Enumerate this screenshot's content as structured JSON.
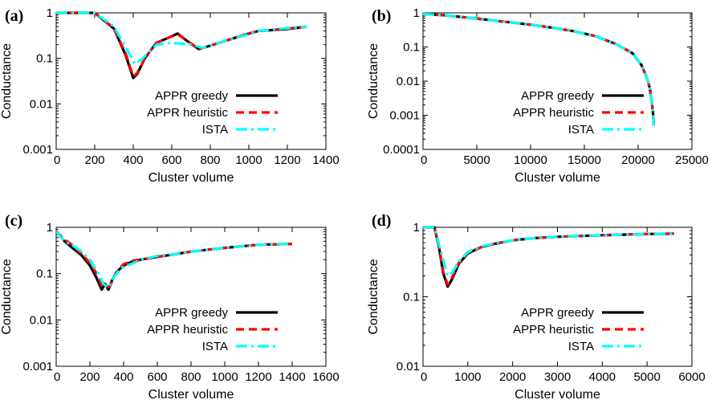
{
  "legend": {
    "placement": "inside-lower-right"
  },
  "colors": {
    "APPR greedy": "#000000",
    "APPR heuristic": "#ff0000",
    "ISTA": "#00ffff"
  },
  "chart_data": [
    {
      "panel": "(a)",
      "type": "line",
      "xlabel": "Cluster volume",
      "ylabel": "Conductance",
      "xlim": [
        0,
        1400
      ],
      "ylim": [
        0.001,
        1
      ],
      "yscale": "log",
      "xticks": [
        0,
        200,
        400,
        600,
        800,
        1000,
        1200,
        1400
      ],
      "xtick_labels": [
        "0",
        "200",
        "400",
        "600",
        "800",
        "1000",
        "1200",
        "1400"
      ],
      "yticks": [
        0.001,
        0.01,
        0.1,
        1
      ],
      "ytick_labels": [
        "0.001",
        "0.01",
        "0.1",
        "1"
      ],
      "series": [
        {
          "name": "APPR greedy",
          "color": "#000000",
          "dash": "solid",
          "x": [
            0,
            200,
            300,
            360,
            400,
            420,
            460,
            520,
            580,
            630,
            680,
            740,
            800,
            900,
            1000,
            1050,
            1200,
            1300
          ],
          "y": [
            1,
            1,
            0.45,
            0.12,
            0.037,
            0.045,
            0.1,
            0.22,
            0.28,
            0.35,
            0.24,
            0.16,
            0.19,
            0.26,
            0.35,
            0.4,
            0.44,
            0.5
          ]
        },
        {
          "name": "APPR heuristic",
          "color": "#ff0000",
          "dash": "dashed",
          "x": [
            0,
            200,
            300,
            360,
            400,
            420,
            460,
            520,
            580,
            630,
            680,
            740,
            800,
            900,
            1000,
            1050,
            1200,
            1300
          ],
          "y": [
            1,
            1,
            0.46,
            0.13,
            0.04,
            0.047,
            0.1,
            0.22,
            0.28,
            0.34,
            0.24,
            0.16,
            0.19,
            0.26,
            0.35,
            0.4,
            0.45,
            0.5
          ]
        },
        {
          "name": "ISTA",
          "color": "#00ffff",
          "dash": "dashdot",
          "x": [
            0,
            200,
            300,
            370,
            410,
            450,
            520,
            600,
            700,
            760,
            800,
            900,
            1000,
            1050,
            1200,
            1300
          ],
          "y": [
            1,
            1,
            0.5,
            0.15,
            0.075,
            0.1,
            0.2,
            0.22,
            0.2,
            0.17,
            0.19,
            0.26,
            0.34,
            0.4,
            0.46,
            0.5
          ]
        }
      ]
    },
    {
      "panel": "(b)",
      "type": "line",
      "xlabel": "Cluster volume",
      "ylabel": "Conductance",
      "xlim": [
        0,
        25000
      ],
      "ylim": [
        0.0001,
        1
      ],
      "yscale": "log",
      "xticks": [
        0,
        5000,
        10000,
        15000,
        20000,
        25000
      ],
      "xtick_labels": [
        "0",
        "5000",
        "10000",
        "15000",
        "20000",
        "25000"
      ],
      "yticks": [
        0.0001,
        0.001,
        0.01,
        0.1,
        1
      ],
      "ytick_labels": [
        "0.0001",
        "0.001",
        "0.01",
        "0.1",
        "1"
      ],
      "series": [
        {
          "name": "APPR greedy",
          "color": "#000000",
          "dash": "solid",
          "x": [
            0,
            2000,
            5000,
            8000,
            10000,
            12000,
            14000,
            16000,
            18000,
            19500,
            20300,
            20800,
            21100,
            21300,
            21400,
            21450
          ],
          "y": [
            0.93,
            0.85,
            0.68,
            0.53,
            0.45,
            0.37,
            0.29,
            0.21,
            0.12,
            0.065,
            0.03,
            0.013,
            0.006,
            0.002,
            0.001,
            0.0005
          ]
        },
        {
          "name": "APPR heuristic",
          "color": "#ff0000",
          "dash": "dashed",
          "x": [
            0,
            2000,
            5000,
            8000,
            10000,
            12000,
            14000,
            16000,
            18000,
            19500,
            20300,
            20800,
            21100,
            21300,
            21400,
            21450
          ],
          "y": [
            0.93,
            0.85,
            0.68,
            0.53,
            0.45,
            0.37,
            0.29,
            0.21,
            0.12,
            0.065,
            0.03,
            0.013,
            0.006,
            0.002,
            0.001,
            0.0005
          ]
        },
        {
          "name": "ISTA",
          "color": "#00ffff",
          "dash": "dashdot",
          "x": [
            0,
            2000,
            5000,
            8000,
            10000,
            12000,
            14000,
            16000,
            18000,
            19500,
            20300,
            20800,
            21100,
            21300,
            21400,
            21450
          ],
          "y": [
            0.93,
            0.85,
            0.68,
            0.53,
            0.45,
            0.37,
            0.29,
            0.21,
            0.12,
            0.065,
            0.03,
            0.013,
            0.006,
            0.002,
            0.001,
            0.0005
          ]
        }
      ]
    },
    {
      "panel": "(c)",
      "type": "line",
      "xlabel": "Cluster volume",
      "ylabel": "Conductance",
      "xlim": [
        0,
        1600
      ],
      "ylim": [
        0.001,
        1
      ],
      "yscale": "log",
      "xticks": [
        0,
        200,
        400,
        600,
        800,
        1000,
        1200,
        1400,
        1600
      ],
      "xtick_labels": [
        "0",
        "200",
        "400",
        "600",
        "800",
        "1000",
        "1200",
        "1400",
        "1600"
      ],
      "yticks": [
        0.001,
        0.01,
        0.1,
        1
      ],
      "ytick_labels": [
        "0.001",
        "0.01",
        "0.1",
        "1"
      ],
      "series": [
        {
          "name": "APPR greedy",
          "color": "#000000",
          "dash": "solid",
          "x": [
            0,
            50,
            100,
            150,
            200,
            240,
            270,
            290,
            310,
            330,
            360,
            400,
            450,
            500,
            600,
            700,
            800,
            1000,
            1200,
            1400
          ],
          "y": [
            0.8,
            0.5,
            0.35,
            0.25,
            0.15,
            0.08,
            0.045,
            0.06,
            0.045,
            0.07,
            0.11,
            0.15,
            0.18,
            0.2,
            0.23,
            0.26,
            0.3,
            0.36,
            0.42,
            0.44
          ]
        },
        {
          "name": "APPR heuristic",
          "color": "#ff0000",
          "dash": "dashed",
          "x": [
            0,
            50,
            100,
            150,
            200,
            240,
            270,
            300,
            320,
            340,
            370,
            400,
            450,
            500,
            600,
            700,
            800,
            1000,
            1200,
            1400
          ],
          "y": [
            0.8,
            0.55,
            0.4,
            0.27,
            0.17,
            0.1,
            0.055,
            0.05,
            0.055,
            0.08,
            0.12,
            0.16,
            0.19,
            0.2,
            0.23,
            0.26,
            0.3,
            0.36,
            0.42,
            0.44
          ]
        },
        {
          "name": "ISTA",
          "color": "#00ffff",
          "dash": "dashdot",
          "x": [
            0,
            50,
            100,
            150,
            200,
            250,
            280,
            310,
            340,
            380,
            420,
            460,
            500,
            600,
            700,
            800,
            1000,
            1200,
            1400
          ],
          "y": [
            0.8,
            0.5,
            0.4,
            0.3,
            0.2,
            0.1,
            0.06,
            0.05,
            0.08,
            0.13,
            0.15,
            0.17,
            0.2,
            0.24,
            0.26,
            0.3,
            0.36,
            0.42,
            0.44
          ]
        }
      ]
    },
    {
      "panel": "(d)",
      "type": "line",
      "xlabel": "Cluster volume",
      "ylabel": "Conductance",
      "xlim": [
        0,
        6000
      ],
      "ylim": [
        0.01,
        1
      ],
      "yscale": "log",
      "xticks": [
        0,
        1000,
        2000,
        3000,
        4000,
        5000,
        6000
      ],
      "xtick_labels": [
        "0",
        "1000",
        "2000",
        "3000",
        "4000",
        "5000",
        "6000"
      ],
      "yticks": [
        0.01,
        0.1,
        1
      ],
      "ytick_labels": [
        "0.01",
        "0.1",
        "1"
      ],
      "series": [
        {
          "name": "APPR greedy",
          "color": "#000000",
          "dash": "solid",
          "x": [
            0,
            250,
            350,
            450,
            550,
            650,
            800,
            1000,
            1300,
            1600,
            2000,
            2500,
            3000,
            3500,
            4000,
            5000,
            5600
          ],
          "y": [
            1,
            1,
            0.55,
            0.22,
            0.14,
            0.18,
            0.3,
            0.42,
            0.52,
            0.58,
            0.65,
            0.7,
            0.73,
            0.75,
            0.77,
            0.8,
            0.81
          ]
        },
        {
          "name": "APPR heuristic",
          "color": "#ff0000",
          "dash": "dashed",
          "x": [
            0,
            250,
            350,
            450,
            550,
            650,
            800,
            1000,
            1300,
            1600,
            2000,
            2500,
            3000,
            3500,
            4000,
            5000,
            5600
          ],
          "y": [
            1,
            1,
            0.58,
            0.23,
            0.15,
            0.19,
            0.31,
            0.43,
            0.52,
            0.58,
            0.65,
            0.7,
            0.73,
            0.75,
            0.77,
            0.8,
            0.81
          ]
        },
        {
          "name": "ISTA",
          "color": "#00ffff",
          "dash": "dashdot",
          "x": [
            0,
            250,
            400,
            550,
            650,
            800,
            1000,
            1300,
            1600,
            2000,
            2500,
            3000,
            3500,
            4000,
            5000,
            5600
          ],
          "y": [
            1,
            1,
            0.45,
            0.2,
            0.22,
            0.32,
            0.44,
            0.53,
            0.59,
            0.65,
            0.7,
            0.73,
            0.75,
            0.77,
            0.8,
            0.81
          ]
        }
      ]
    }
  ]
}
